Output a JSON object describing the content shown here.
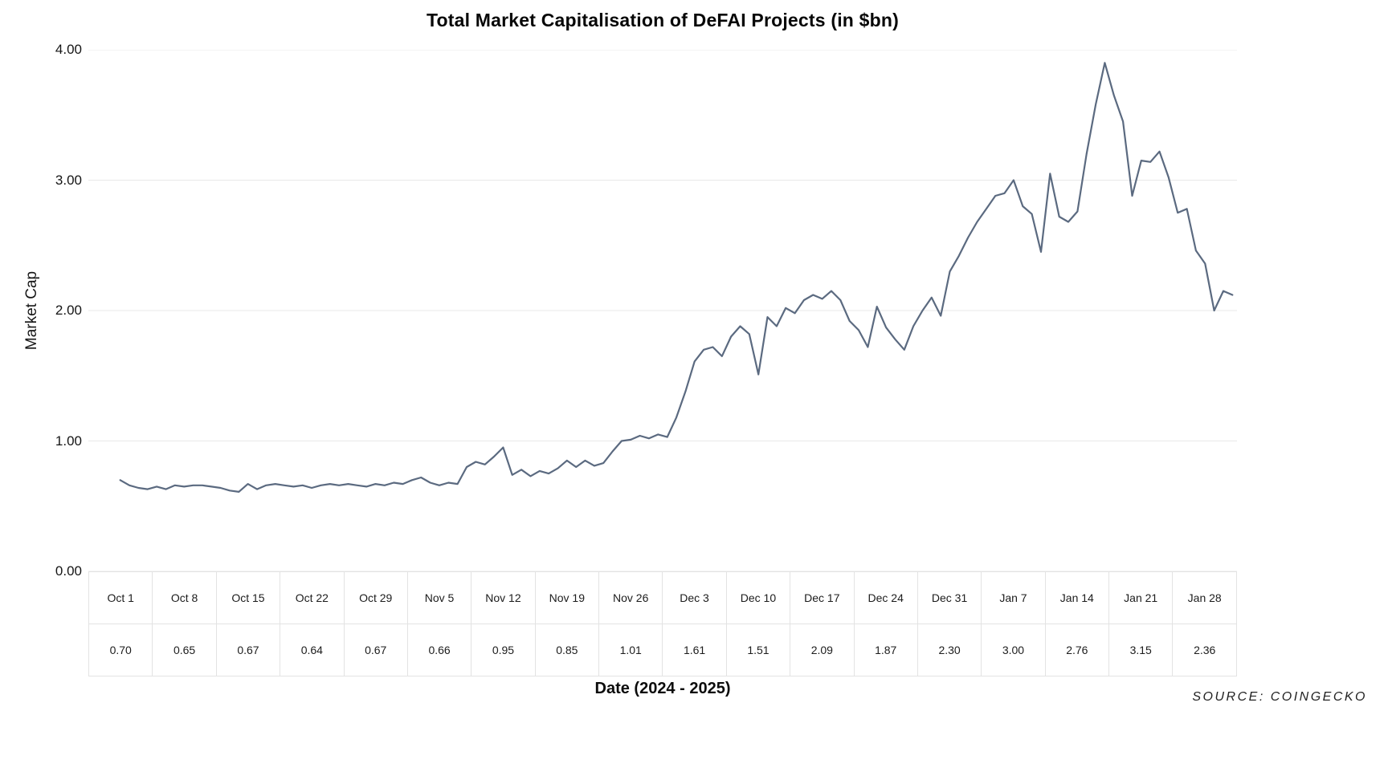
{
  "header": {
    "title": "Total Market Capitalisation of DeFAI Projects (in $bn)"
  },
  "axes": {
    "y_label": "Market Cap",
    "x_label": "Date (2024 - 2025)",
    "y_ticks": [
      {
        "label": "4.00",
        "value": 4
      },
      {
        "label": "3.00",
        "value": 3
      },
      {
        "label": "2.00",
        "value": 2
      },
      {
        "label": "1.00",
        "value": 1
      },
      {
        "label": "0.00",
        "value": 0
      }
    ]
  },
  "source": "SOURCE: COINGECKO",
  "chart_data": {
    "type": "line",
    "title": "Total Market Capitalisation of DeFAI Projects (in $bn)",
    "xlabel": "Date (2024 - 2025)",
    "ylabel": "Market Cap",
    "ylim": [
      0,
      4
    ],
    "y_tick_values": [
      0,
      1,
      2,
      3,
      4
    ],
    "grid": "horizontal",
    "legend_position": "none",
    "line_color": "#5b6a80",
    "grid_color": "#e8e8e8",
    "categories": [
      "Oct 1",
      "Oct 8",
      "Oct 15",
      "Oct 22",
      "Oct 29",
      "Nov 5",
      "Nov 12",
      "Nov 19",
      "Nov 26",
      "Dec 3",
      "Dec 10",
      "Dec 17",
      "Dec 24",
      "Dec 31",
      "Jan 7",
      "Jan 14",
      "Jan 21",
      "Jan 28"
    ],
    "weekly_values": [
      0.7,
      0.65,
      0.67,
      0.64,
      0.67,
      0.66,
      0.95,
      0.85,
      1.01,
      1.61,
      1.51,
      2.09,
      1.87,
      2.3,
      3.0,
      2.76,
      3.15,
      2.36
    ],
    "days_per_category": 7,
    "daily_values_estimated": [
      0.7,
      0.66,
      0.64,
      0.63,
      0.65,
      0.63,
      0.66,
      0.65,
      0.66,
      0.66,
      0.65,
      0.64,
      0.62,
      0.61,
      0.67,
      0.63,
      0.66,
      0.67,
      0.66,
      0.65,
      0.66,
      0.64,
      0.66,
      0.67,
      0.66,
      0.67,
      0.66,
      0.65,
      0.67,
      0.66,
      0.68,
      0.67,
      0.7,
      0.72,
      0.68,
      0.66,
      0.68,
      0.67,
      0.8,
      0.84,
      0.82,
      0.88,
      0.95,
      0.74,
      0.78,
      0.73,
      0.77,
      0.75,
      0.79,
      0.85,
      0.8,
      0.85,
      0.81,
      0.83,
      0.92,
      1.0,
      1.01,
      1.04,
      1.02,
      1.05,
      1.03,
      1.18,
      1.38,
      1.61,
      1.7,
      1.72,
      1.65,
      1.8,
      1.88,
      1.82,
      1.51,
      1.95,
      1.88,
      2.02,
      1.98,
      2.08,
      2.12,
      2.09,
      2.15,
      2.08,
      1.92,
      1.85,
      1.72,
      2.03,
      1.87,
      1.78,
      1.7,
      1.88,
      2.0,
      2.1,
      1.96,
      2.3,
      2.42,
      2.56,
      2.68,
      2.78,
      2.88,
      2.9,
      3.0,
      2.8,
      2.74,
      2.45,
      3.05,
      2.72,
      2.68,
      2.76,
      3.2,
      3.58,
      3.9,
      3.65,
      3.45,
      2.88,
      3.15,
      3.14,
      3.22,
      3.02,
      2.75,
      2.78,
      2.46,
      2.36,
      2.0,
      2.15,
      2.12
    ]
  },
  "table": {
    "date_row": [
      "Oct 1",
      "Oct 8",
      "Oct 15",
      "Oct 22",
      "Oct 29",
      "Nov 5",
      "Nov 12",
      "Nov 19",
      "Nov 26",
      "Dec 3",
      "Dec 10",
      "Dec 17",
      "Dec 24",
      "Dec 31",
      "Jan 7",
      "Jan 14",
      "Jan 21",
      "Jan 28"
    ],
    "value_row": [
      "0.70",
      "0.65",
      "0.67",
      "0.64",
      "0.67",
      "0.66",
      "0.95",
      "0.85",
      "1.01",
      "1.61",
      "1.51",
      "2.09",
      "1.87",
      "2.30",
      "3.00",
      "2.76",
      "3.15",
      "2.36"
    ]
  }
}
